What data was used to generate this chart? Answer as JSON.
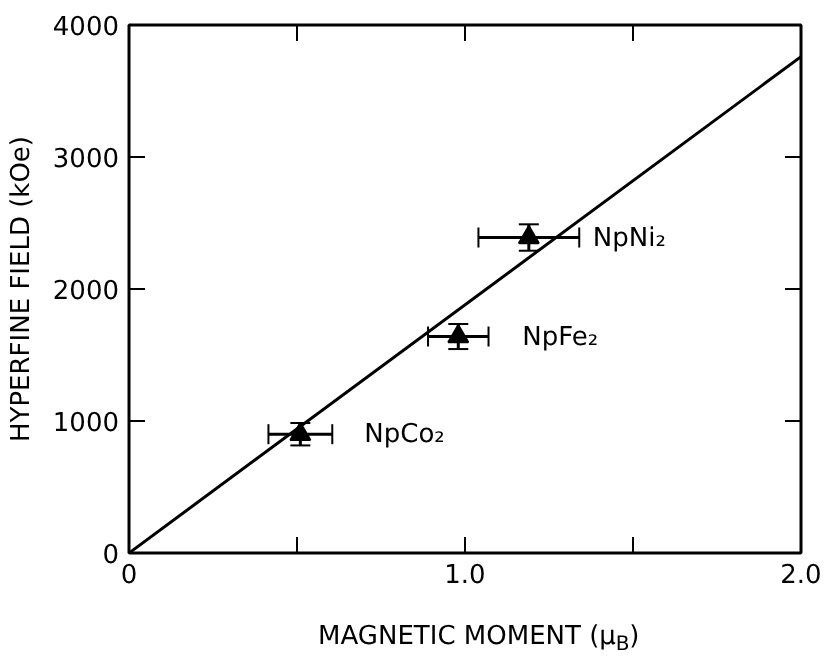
{
  "chart_data": {
    "type": "scatter",
    "xlabel": "MAGNETIC MOMENT (μ$_{B}$)",
    "ylabel": "HYPERFINE FIELD (kOe)",
    "xlim": [
      0,
      2.0
    ],
    "ylim": [
      0,
      4000
    ],
    "xticks": [
      {
        "value": 0,
        "label": "0"
      },
      {
        "value": 0.5,
        "label": null
      },
      {
        "value": 1.0,
        "label": "1.0"
      },
      {
        "value": 1.5,
        "label": null
      },
      {
        "value": 2.0,
        "label": "2.0"
      }
    ],
    "yticks": [
      0,
      1000,
      2000,
      3000,
      4000
    ],
    "grid": false,
    "series": [
      {
        "color": "#000000",
        "marker": "triangle",
        "x": [
          0.51,
          0.98,
          1.19
        ],
        "values": [
          900,
          1640,
          2390
        ],
        "errors": [
          85,
          95,
          100
        ],
        "xerrors": [
          0.095,
          0.09,
          0.15
        ]
      },
      {
        "type": "line",
        "color": "#000000",
        "x": [
          0,
          2.0
        ],
        "values": [
          0,
          3760
        ],
        "line_style": "solid"
      }
    ],
    "annotations": [
      {
        "text": "NpCo₂",
        "x": 0.51,
        "y": 900
      },
      {
        "text": "NpFe₂",
        "x": 0.98,
        "y": 1640
      },
      {
        "text": "NpNi₂",
        "x": 1.19,
        "y": 2390
      }
    ]
  }
}
